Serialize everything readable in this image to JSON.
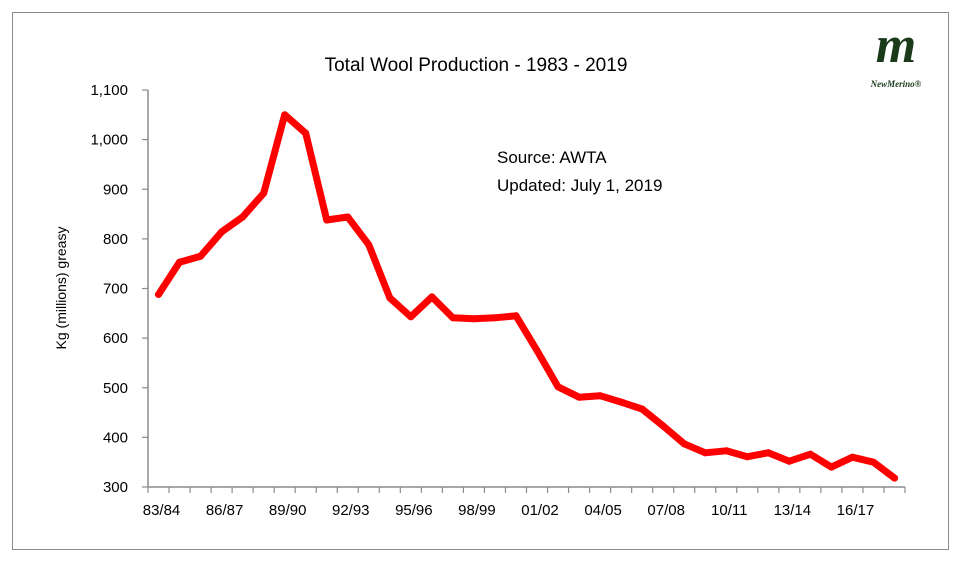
{
  "chart_data": {
    "type": "line",
    "title": "Total Wool Production  -  1983 - 2019",
    "xlabel": "",
    "ylabel": "Kg (millions) greasy",
    "ylim": [
      300,
      1100
    ],
    "yticks": [
      "300",
      "400",
      "500",
      "600",
      "700",
      "800",
      "900",
      "1,000",
      "1,100"
    ],
    "ytick_values": [
      300,
      400,
      500,
      600,
      700,
      800,
      900,
      1000,
      1100
    ],
    "categories": [
      "83/84",
      "84/85",
      "85/86",
      "86/87",
      "87/88",
      "88/89",
      "89/90",
      "90/91",
      "91/92",
      "92/93",
      "93/94",
      "94/95",
      "95/96",
      "96/97",
      "97/98",
      "98/99",
      "99/00",
      "00/01",
      "01/02",
      "02/03",
      "03/04",
      "04/05",
      "05/06",
      "06/07",
      "07/08",
      "08/09",
      "09/10",
      "10/11",
      "11/12",
      "12/13",
      "13/14",
      "14/15",
      "15/16",
      "16/17",
      "17/18",
      "18/19"
    ],
    "xtick_labels_shown": [
      "83/84",
      "86/87",
      "89/90",
      "92/93",
      "95/96",
      "98/99",
      "01/02",
      "04/05",
      "07/08",
      "10/11",
      "13/14",
      "16/17"
    ],
    "series": [
      {
        "name": "Total Wool Production",
        "color": "#ff0000",
        "values": [
          688,
          753,
          765,
          814,
          844,
          892,
          1050,
          1013,
          838,
          844,
          788,
          681,
          643,
          683,
          641,
          639,
          641,
          645,
          575,
          502,
          481,
          484,
          471,
          457,
          423,
          387,
          369,
          373,
          361,
          369,
          352,
          366,
          340,
          360,
          350,
          318
        ]
      }
    ],
    "grid": false,
    "annotations": [
      "Source:  AWTA",
      "Updated: July 1, 2019"
    ]
  },
  "logo": {
    "mark": "m",
    "name": "NewMerino®"
  }
}
